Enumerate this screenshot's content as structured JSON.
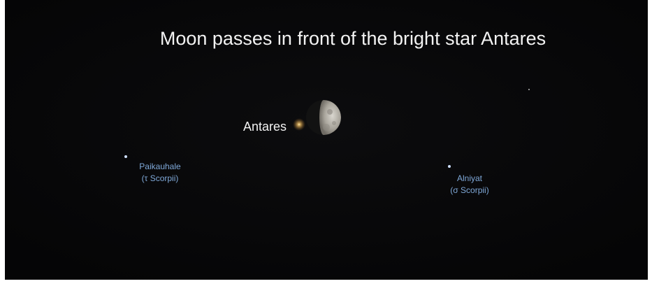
{
  "title": "Moon passes in front of the bright star Antares",
  "labels": {
    "antares": "Antares",
    "paikauhale": {
      "name": "Paikauhale",
      "designation": "(τ Scorpii)"
    },
    "alniyat": {
      "name": "Alniyat",
      "designation": "(σ Scorpii)"
    }
  }
}
